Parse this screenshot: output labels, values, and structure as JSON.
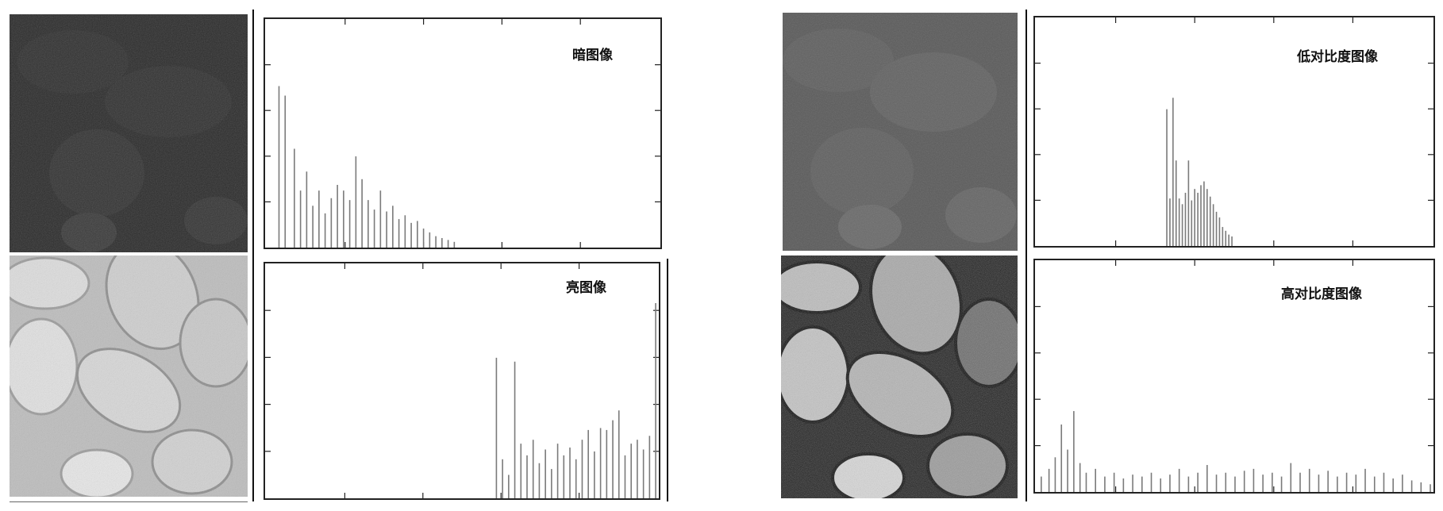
{
  "colors": {
    "ink": "#1a1a1a",
    "bar": "#7a7a7a",
    "frame": "#222222",
    "dark_photo": "#2b2b2b",
    "low_photo": "#5a5a5a"
  },
  "chart_data": [
    {
      "type": "bar",
      "title": "暗图像",
      "xlim": [
        0,
        255
      ],
      "ylim": [
        0,
        1
      ],
      "x": [
        8,
        12,
        18,
        22,
        26,
        30,
        34,
        38,
        42,
        46,
        50,
        54,
        58,
        62,
        66,
        70,
        74,
        78,
        82,
        86,
        90,
        94,
        98,
        102,
        106,
        110,
        114,
        118,
        122
      ],
      "values": [
        0.85,
        0.8,
        0.52,
        0.3,
        0.4,
        0.22,
        0.3,
        0.18,
        0.26,
        0.33,
        0.3,
        0.25,
        0.48,
        0.36,
        0.25,
        0.2,
        0.3,
        0.19,
        0.22,
        0.15,
        0.17,
        0.13,
        0.14,
        0.1,
        0.08,
        0.06,
        0.05,
        0.04,
        0.03
      ]
    },
    {
      "type": "bar",
      "title": "亮图像",
      "xlim": [
        0,
        255
      ],
      "ylim": [
        0,
        1
      ],
      "x": [
        150,
        154,
        158,
        162,
        166,
        170,
        174,
        178,
        182,
        186,
        190,
        194,
        198,
        202,
        206,
        210,
        214,
        218,
        222,
        226,
        230,
        234,
        238,
        242,
        246,
        250,
        254
      ],
      "values": [
        0.72,
        0.2,
        0.12,
        0.7,
        0.28,
        0.22,
        0.3,
        0.18,
        0.25,
        0.15,
        0.28,
        0.22,
        0.26,
        0.2,
        0.3,
        0.35,
        0.24,
        0.36,
        0.35,
        0.4,
        0.45,
        0.22,
        0.28,
        0.3,
        0.25,
        0.32,
        1.0
      ]
    },
    {
      "type": "bar",
      "title": "低对比度图像",
      "xlim": [
        0,
        255
      ],
      "ylim": [
        0,
        1
      ],
      "x": [
        84,
        86,
        88,
        90,
        92,
        94,
        96,
        98,
        100,
        102,
        104,
        106,
        108,
        110,
        112,
        114,
        116,
        118,
        120,
        122,
        124,
        126
      ],
      "values": [
        0.72,
        0.25,
        0.78,
        0.45,
        0.25,
        0.22,
        0.28,
        0.45,
        0.24,
        0.3,
        0.28,
        0.32,
        0.34,
        0.3,
        0.26,
        0.22,
        0.18,
        0.15,
        0.1,
        0.08,
        0.06,
        0.05
      ]
    },
    {
      "type": "bar",
      "title": "高对比度图像",
      "xlim": [
        0,
        255
      ],
      "ylim": [
        0,
        1
      ],
      "x": [
        3,
        8,
        12,
        16,
        20,
        24,
        28,
        32,
        38,
        44,
        50,
        56,
        62,
        68,
        74,
        80,
        86,
        92,
        98,
        104,
        110,
        116,
        122,
        128,
        134,
        140,
        146,
        152,
        158,
        164,
        170,
        176,
        182,
        188,
        194,
        200,
        206,
        212,
        218,
        224,
        230,
        236,
        242,
        248,
        254
      ],
      "values": [
        0.08,
        0.12,
        0.18,
        0.35,
        0.22,
        0.42,
        0.15,
        0.1,
        0.12,
        0.08,
        0.1,
        0.07,
        0.09,
        0.08,
        0.1,
        0.07,
        0.09,
        0.12,
        0.08,
        0.1,
        0.14,
        0.09,
        0.1,
        0.08,
        0.11,
        0.12,
        0.09,
        0.1,
        0.08,
        0.15,
        0.1,
        0.12,
        0.09,
        0.11,
        0.08,
        0.1,
        0.09,
        0.12,
        0.08,
        0.1,
        0.07,
        0.09,
        0.06,
        0.05,
        0.04
      ]
    }
  ]
}
